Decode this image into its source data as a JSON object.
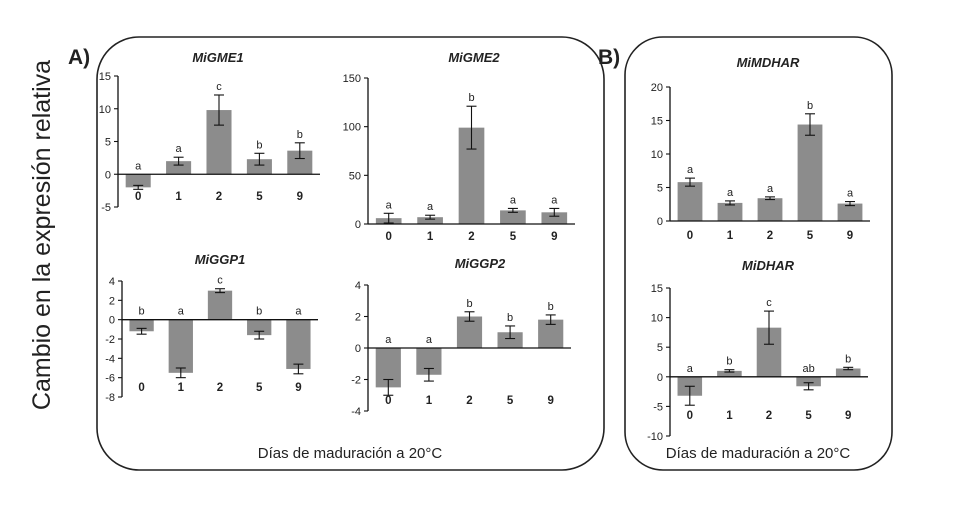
{
  "y_axis_label": "Cambio en la expresión relativa",
  "panels": [
    {
      "label": "A)",
      "x_axis_label": "Días de maduración a 20°C"
    },
    {
      "label": "B)",
      "x_axis_label": "Días de maduración a 20°C"
    }
  ],
  "colors": {
    "bar": "#8c8c8c",
    "axis": "#111111",
    "frame": "#222222"
  },
  "chart_data": [
    {
      "type": "bar",
      "title": "MiGME1",
      "categories": [
        "0",
        "1",
        "2",
        "5",
        "9"
      ],
      "values": [
        -2.0,
        2.0,
        9.8,
        2.3,
        3.6
      ],
      "errors": [
        0.3,
        0.6,
        2.3,
        0.9,
        1.2
      ],
      "letters": [
        "a",
        "a",
        "c",
        "b",
        "b"
      ],
      "ylim": [
        -5,
        15
      ],
      "yticks": [
        -5,
        0,
        5,
        10,
        15
      ],
      "xlabel": "",
      "ylabel": ""
    },
    {
      "type": "bar",
      "title": "MiGME2",
      "categories": [
        "0",
        "1",
        "2",
        "5",
        "9"
      ],
      "values": [
        6,
        7,
        99,
        14,
        12
      ],
      "errors": [
        5,
        2,
        22,
        2,
        4
      ],
      "letters": [
        "a",
        "a",
        "b",
        "a",
        "a"
      ],
      "ylim": [
        0,
        150
      ],
      "yticks": [
        0,
        50,
        100,
        150
      ],
      "xlabel": "",
      "ylabel": ""
    },
    {
      "type": "bar",
      "title": "MiGGP1",
      "categories": [
        "0",
        "1",
        "2",
        "5",
        "9"
      ],
      "values": [
        -1.2,
        -5.5,
        3.0,
        -1.6,
        -5.1
      ],
      "errors": [
        0.3,
        0.5,
        0.2,
        0.4,
        0.5
      ],
      "letters": [
        "b",
        "a",
        "c",
        "b",
        "a"
      ],
      "ylim": [
        -8,
        4
      ],
      "yticks": [
        -8,
        -6,
        -4,
        -2,
        0,
        2,
        4
      ],
      "xlabel": "",
      "ylabel": ""
    },
    {
      "type": "bar",
      "title": "MiGGP2",
      "categories": [
        "0",
        "1",
        "2",
        "5",
        "9"
      ],
      "values": [
        -2.5,
        -1.7,
        2.0,
        1.0,
        1.8
      ],
      "errors": [
        0.5,
        0.4,
        0.3,
        0.4,
        0.3
      ],
      "letters": [
        "a",
        "a",
        "b",
        "b",
        "b"
      ],
      "ylim": [
        -4,
        4
      ],
      "yticks": [
        -4,
        -2,
        0,
        2,
        4
      ],
      "xlabel": "",
      "ylabel": ""
    },
    {
      "type": "bar",
      "title": "MiMDHAR",
      "categories": [
        "0",
        "1",
        "2",
        "5",
        "9"
      ],
      "values": [
        5.8,
        2.7,
        3.4,
        14.4,
        2.6
      ],
      "errors": [
        0.6,
        0.3,
        0.2,
        1.6,
        0.3
      ],
      "letters": [
        "a",
        "a",
        "a",
        "b",
        "a"
      ],
      "ylim": [
        0,
        20
      ],
      "yticks": [
        0,
        5,
        10,
        15,
        20
      ],
      "xlabel": "",
      "ylabel": ""
    },
    {
      "type": "bar",
      "title": "MiDHAR",
      "categories": [
        "0",
        "1",
        "2",
        "5",
        "9"
      ],
      "values": [
        -3.2,
        1.0,
        8.3,
        -1.6,
        1.4
      ],
      "errors": [
        1.6,
        0.2,
        2.8,
        0.6,
        0.2
      ],
      "letters": [
        "a",
        "b",
        "c",
        "ab",
        "b"
      ],
      "ylim": [
        -10,
        15
      ],
      "yticks": [
        -10,
        -5,
        0,
        5,
        10,
        15
      ],
      "xlabel": "",
      "ylabel": ""
    }
  ]
}
